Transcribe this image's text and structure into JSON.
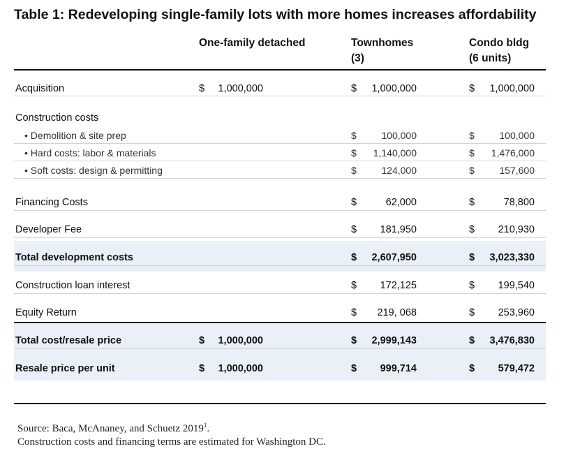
{
  "title": "Table 1: Redeveloping single-family lots with more homes increases affordability",
  "columns": [
    [
      "One-family detached"
    ],
    [
      "Townhomes",
      "(3)"
    ],
    [
      "Condo bldg",
      "(6 units)"
    ]
  ],
  "rows": [
    {
      "label": "Acquisition",
      "cells": [
        [
          "$",
          "1,000,000"
        ],
        [
          "$",
          "1,000,000"
        ],
        [
          "$",
          "1,000,000"
        ]
      ]
    },
    {
      "label": "Construction costs",
      "cells": [
        null,
        null,
        null
      ]
    },
    {
      "label": "• Demolition & site prep",
      "cells": [
        null,
        [
          "$",
          "100,000"
        ],
        [
          "$",
          "100,000"
        ]
      ]
    },
    {
      "label": "• Hard costs: labor & materials",
      "cells": [
        null,
        [
          "$",
          "1,140,000"
        ],
        [
          "$",
          "1,476,000"
        ]
      ]
    },
    {
      "label": "• Soft costs: design & permitting",
      "cells": [
        null,
        [
          "$",
          "124,000"
        ],
        [
          "$",
          "157,600"
        ]
      ]
    },
    {
      "label": "Financing Costs",
      "cells": [
        null,
        [
          "$",
          "62,000"
        ],
        [
          "$",
          "78,800"
        ]
      ]
    },
    {
      "label": "Developer Fee",
      "cells": [
        null,
        [
          "$",
          "181,950"
        ],
        [
          "$",
          "210,930"
        ]
      ]
    },
    {
      "label": "Total development costs",
      "cells": [
        null,
        [
          "$",
          "2,607,950"
        ],
        [
          "$",
          "3,023,330"
        ]
      ]
    },
    {
      "label": "Construction loan interest",
      "cells": [
        null,
        [
          "$",
          "172,125"
        ],
        [
          "$",
          "199,540"
        ]
      ]
    },
    {
      "label": "Equity Return",
      "cells": [
        null,
        [
          "$",
          "219, 068"
        ],
        [
          "$",
          "253,960"
        ]
      ]
    },
    {
      "label": "Total cost/resale price",
      "cells": [
        [
          "$",
          "1,000,000"
        ],
        [
          "$",
          "2,999,143"
        ],
        [
          "$",
          "3,476,830"
        ]
      ]
    },
    {
      "label": "Resale price per unit",
      "cells": [
        [
          "$",
          "1,000,000"
        ],
        [
          "$",
          "999,714"
        ],
        [
          "$",
          "579,472"
        ]
      ]
    }
  ],
  "footer": {
    "source": "Source: Baca, McAnaney, and Schuetz 2019",
    "ref": "1",
    "end": ".",
    "note": "Construction costs and financing terms are estimated for Washington DC."
  }
}
